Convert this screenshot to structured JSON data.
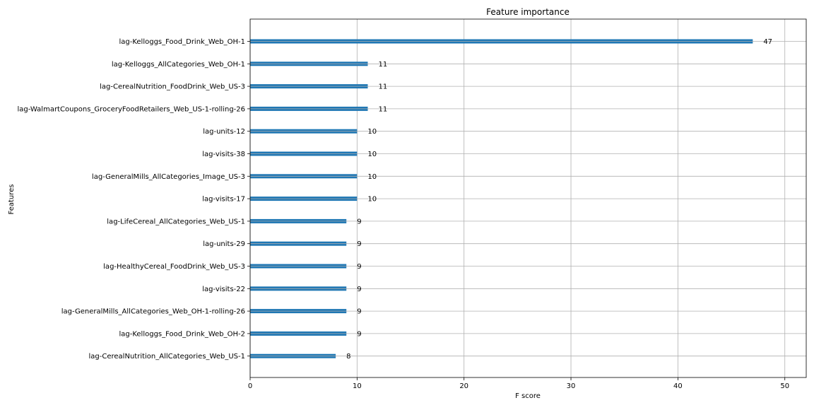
{
  "chart_data": {
    "type": "bar",
    "orientation": "horizontal",
    "title": "Feature importance",
    "xlabel": "F score",
    "ylabel": "Features",
    "xlim": [
      0,
      52
    ],
    "x_ticks": [
      0,
      10,
      20,
      30,
      40,
      50
    ],
    "grid": true,
    "bar_color": "#1f77b4",
    "categories": [
      "lag-Kelloggs_Food_Drink_Web_OH-1",
      "lag-Kelloggs_AllCategories_Web_OH-1",
      "lag-CerealNutrition_FoodDrink_Web_US-3",
      "lag-WalmartCoupons_GroceryFoodRetailers_Web_US-1-rolling-26",
      "lag-units-12",
      "lag-visits-38",
      "lag-GeneralMills_AllCategories_Image_US-3",
      "lag-visits-17",
      "lag-LifeCereal_AllCategories_Web_US-1",
      "lag-units-29",
      "lag-HealthyCereal_FoodDrink_Web_US-3",
      "lag-visits-22",
      "lag-GeneralMills_AllCategories_Web_OH-1-rolling-26",
      "lag-Kelloggs_Food_Drink_Web_OH-2",
      "lag-CerealNutrition_AllCategories_Web_US-1"
    ],
    "values": [
      47,
      11,
      11,
      11,
      10,
      10,
      10,
      10,
      9,
      9,
      9,
      9,
      9,
      9,
      8
    ]
  }
}
